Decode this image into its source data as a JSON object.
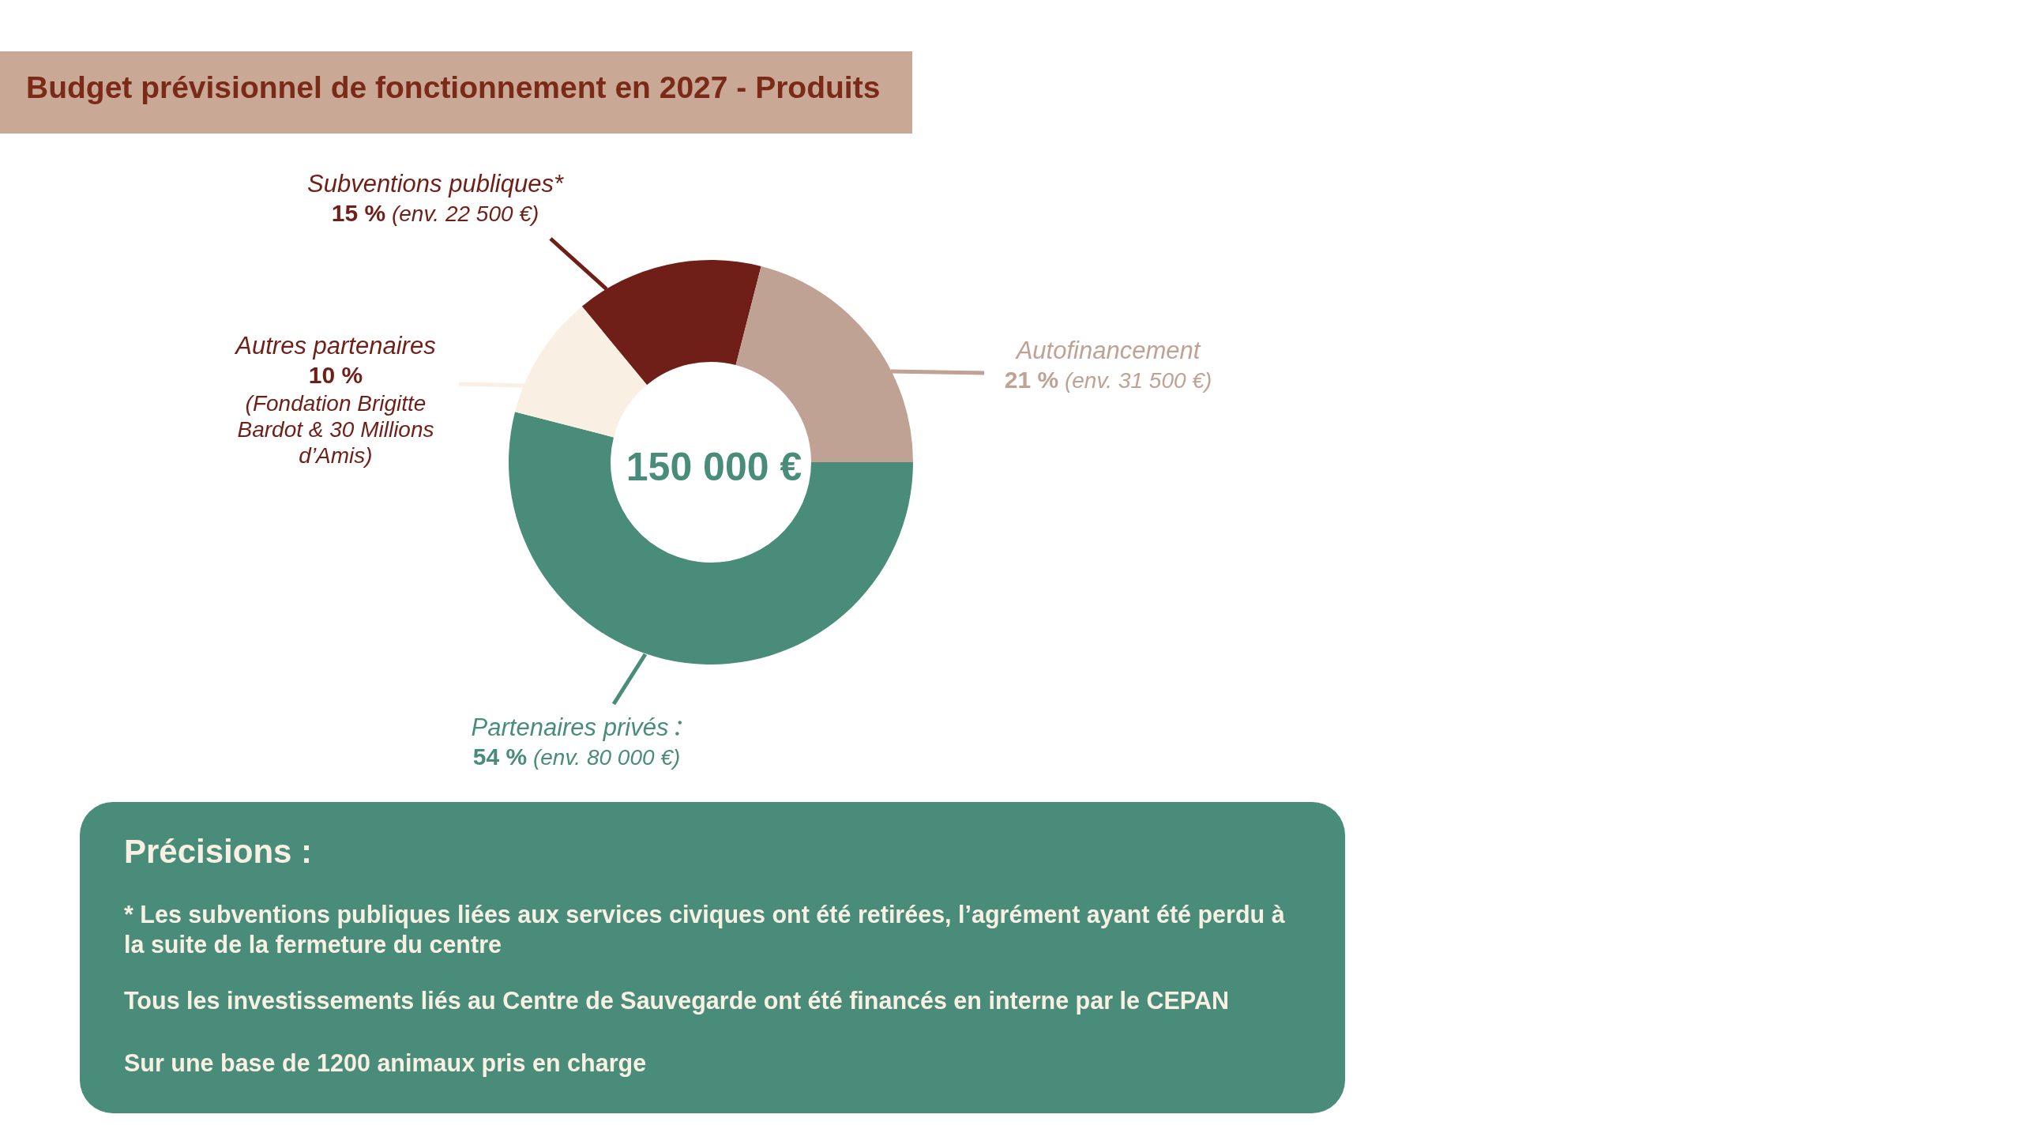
{
  "chart_data": {
    "type": "donut",
    "title": "Budget prévisionnel de fonctionnement en 2027 - Produits",
    "categories": [
      "Subventions publiques*",
      "Autofinancement",
      "Partenaires privés",
      "Autres partenaires"
    ],
    "values": [
      15,
      21,
      54,
      10
    ],
    "colors": [
      "#6f1f17",
      "#bfa293",
      "#488c79",
      "#f9efe3"
    ],
    "value_labels": [
      "15 % (env. 22 500 €)",
      "21 % (env. 31 500 €)",
      "54 % (env. 80 000 €)",
      "10 % (Fondation Brigitte Bardot & 30 Millions d’Amis)"
    ],
    "annotations": [
      "150 000 €",
      "Précisions :",
      "* Les subventions publiques liées aux services civiques ont été retirées, l’agrément ayant été perdu à la suite de la fermeture du centre",
      "Tous les investissements liés au Centre de Sauvegarde ont été financés en interne par le CEPAN",
      "Sur une base de 1200 animaux pris en charge"
    ]
  }
}
